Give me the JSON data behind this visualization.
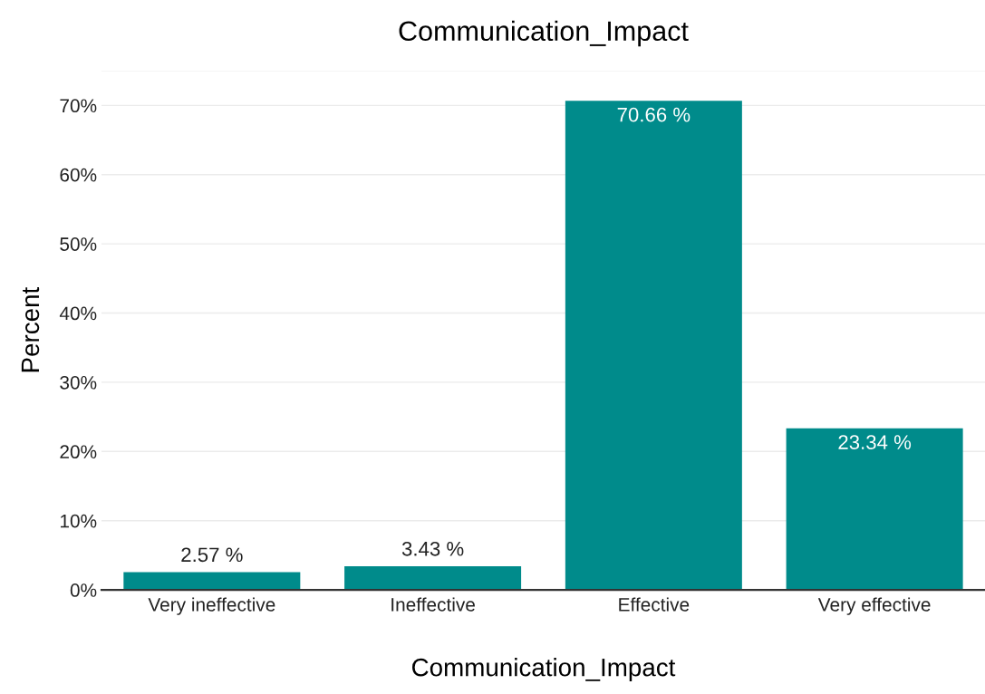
{
  "chart_data": {
    "type": "bar",
    "title": "Communication_Impact",
    "xlabel": "Communication_Impact",
    "ylabel": "Percent",
    "categories": [
      "Very ineffective",
      "Ineffective",
      "Effective",
      "Very effective"
    ],
    "values": [
      2.57,
      3.43,
      70.66,
      23.34
    ],
    "value_labels": [
      "2.57 %",
      "3.43 %",
      "70.66 %",
      "23.34 %"
    ],
    "color": "#008b8b",
    "ylim": [
      0,
      75
    ],
    "yticks": [
      {
        "value": 0,
        "label": "0%"
      },
      {
        "value": 10,
        "label": "10%"
      },
      {
        "value": 20,
        "label": "20%"
      },
      {
        "value": 30,
        "label": "30%"
      },
      {
        "value": 40,
        "label": "40%"
      },
      {
        "value": 50,
        "label": "50%"
      },
      {
        "value": 60,
        "label": "60%"
      },
      {
        "value": 70,
        "label": "70%"
      },
      {
        "value": 75,
        "label": null
      }
    ],
    "grid": "y",
    "legend": false
  }
}
